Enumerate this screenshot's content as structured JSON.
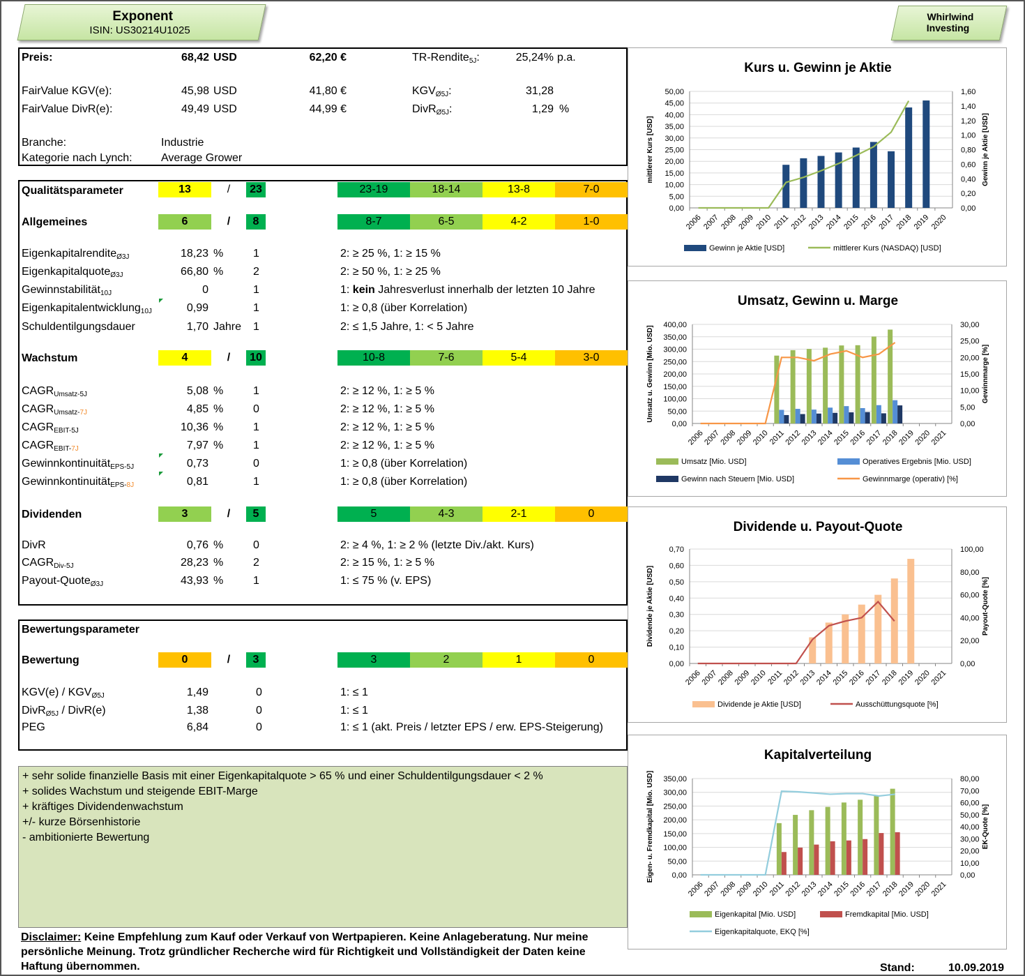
{
  "header": {
    "company": "Exponent",
    "isin": "ISIN: US30214U1025",
    "brand1": "Whirlwind",
    "brand2": "Investing"
  },
  "colors": {
    "dkgreen": "#00b050",
    "ltgreen": "#92d050",
    "yellow": "#ffff00",
    "orange": "#ffc000",
    "navy": "#1f497d",
    "lineGreen": "#9bbb59",
    "barGreen": "#9bbb59",
    "barBlue": "#558ed5",
    "barNavy": "#1f3864",
    "lineOrange": "#f79646",
    "peach": "#fac090",
    "darkred": "#c0504d",
    "lightblue": "#93cddd",
    "commentBg": "#d8e4bc"
  },
  "info": {
    "preis_label": "Preis:",
    "preis_usd": "68,42",
    "usd": "USD",
    "preis_eur": "62,20 €",
    "tr_label": "TR-Rendite",
    "tr_sub": "5J",
    "tr_colon": ":",
    "tr_value": "25,24%",
    "pa": "p.a.",
    "fv_kgv_label": "FairValue KGV(e):",
    "fv_kgv_usd": "45,98",
    "fv_kgv_eur": "41,80 €",
    "kgv_label": "KGV",
    "kgv_sub": "Ø5J",
    "kgv_colon": ":",
    "kgv_value": "31,28",
    "fv_divr_label": "FairValue DivR(e):",
    "fv_divr_usd": "49,49",
    "fv_divr_eur": "44,99 €",
    "divr_label": "DivR",
    "divr_sub": "Ø5J",
    "divr_colon": ":",
    "divr_value": "1,29",
    "pct": "%",
    "branche_label": "Branche:",
    "branche": "Industrie",
    "lynch_label": "Kategorie nach Lynch:",
    "lynch": "Average Grower"
  },
  "quality": {
    "title": "Qualitätsparameter",
    "score": "13",
    "slash": "/",
    "max": "23",
    "scale": [
      "23-19",
      "18-14",
      "13-8",
      "7-0"
    ]
  },
  "allg": {
    "title": "Allgemeines",
    "score": "6",
    "slash": "/",
    "max": "8",
    "scale": [
      "8-7",
      "6-5",
      "4-2",
      "1-0"
    ],
    "rows": [
      {
        "label": "Eigenkapitalrendite",
        "sub": "Ø3J",
        "val": "18,23",
        "unit": "%",
        "pts": "1",
        "crit": "2: ≥ 25 %, 1: ≥ 15 %"
      },
      {
        "label": "Eigenkapitalquote",
        "sub": "Ø3J",
        "val": "66,80",
        "unit": "%",
        "pts": "2",
        "crit": "2: ≥ 50 %, 1: ≥ 25 %"
      },
      {
        "label": "Gewinnstabilität",
        "sub": "10J",
        "val": "0",
        "unit": "",
        "pts": "1",
        "crit_pre": "1: ",
        "crit_bold": "kein",
        "crit_post": " Jahresverlust innerhalb der letzten 10 Jahre"
      },
      {
        "label": "Eigenkapitalentwicklung",
        "sub": "10J",
        "val": "0,99",
        "unit": "",
        "pts": "1",
        "crit": "1: ≥ 0,8 (über Korrelation)"
      },
      {
        "label": "Schuldentilgungsdauer",
        "sub": "",
        "val": "1,70",
        "unit": "Jahre",
        "pts": "1",
        "crit": "2: ≤ 1,5 Jahre, 1: < 5 Jahre"
      }
    ]
  },
  "wachstum": {
    "title": "Wachstum",
    "score": "4",
    "slash": "/",
    "max": "10",
    "scale": [
      "10-8",
      "7-6",
      "5-4",
      "3-0"
    ],
    "rows": [
      {
        "label": "CAGR",
        "sub": "Umsatz-5J",
        "val": "5,08",
        "unit": "%",
        "pts": "1",
        "crit": "2: ≥ 12 %, 1: ≥ 5 %"
      },
      {
        "label": "CAGR",
        "sub": "Umsatz-",
        "sub2": "7J",
        "val": "4,85",
        "unit": "%",
        "pts": "0",
        "crit": "2: ≥ 12 %, 1: ≥ 5 %"
      },
      {
        "label": "CAGR",
        "sub": "EBIT-5J",
        "val": "10,36",
        "unit": "%",
        "pts": "1",
        "crit": "2: ≥ 12 %, 1: ≥ 5 %"
      },
      {
        "label": "CAGR",
        "sub": "EBIT-",
        "sub2": "7J",
        "val": "7,97",
        "unit": "%",
        "pts": "1",
        "crit": "2: ≥ 12 %, 1: ≥ 5 %"
      },
      {
        "label": "Gewinnkontinuität",
        "sub": "EPS-5J",
        "val": "0,73",
        "unit": "",
        "pts": "0",
        "crit": "1: ≥ 0,8 (über Korrelation)"
      },
      {
        "label": "Gewinnkontinuität",
        "sub": "EPS-",
        "sub2": "8J",
        "val": "0,81",
        "unit": "",
        "pts": "1",
        "crit": "1: ≥ 0,8 (über Korrelation)"
      }
    ]
  },
  "dividenden": {
    "title": "Dividenden",
    "score": "3",
    "slash": "/",
    "max": "5",
    "scale": [
      "5",
      "4-3",
      "2-1",
      "0"
    ],
    "rows": [
      {
        "label": "DivR",
        "sub": "",
        "val": "0,76",
        "unit": "%",
        "pts": "0",
        "crit": "2: ≥ 4 %, 1: ≥ 2 % (letzte Div./akt. Kurs)"
      },
      {
        "label": "CAGR",
        "sub": "Div-5J",
        "val": "28,23",
        "unit": "%",
        "pts": "2",
        "crit": "2: ≥ 15 %, 1: ≥ 5 %"
      },
      {
        "label": "Payout-Quote",
        "sub": "Ø3J",
        "val": "43,93",
        "unit": "%",
        "pts": "1",
        "crit": "1: ≤ 75 % (v. EPS)"
      }
    ]
  },
  "bewertung": {
    "section": "Bewertungsparameter",
    "title": "Bewertung",
    "score": "0",
    "slash": "/",
    "max": "3",
    "scale": [
      "3",
      "2",
      "1",
      "0"
    ],
    "rows": [
      {
        "label": "KGV(e) / KGV",
        "sub": "Ø5J",
        "val": "1,49",
        "pts": "0",
        "crit": "1: ≤ 1"
      },
      {
        "label": "DivR",
        "sub": "Ø5J",
        "label2": " / DivR(e)",
        "val": "1,38",
        "pts": "0",
        "crit": "1: ≤ 1"
      },
      {
        "label": "PEG",
        "sub": "",
        "val": "6,84",
        "pts": "0",
        "crit": "1: ≤ 1 (akt. Preis / letzter EPS / erw. EPS-Steigerung)"
      }
    ]
  },
  "comments": [
    "+ sehr solide finanzielle Basis mit einer Eigenkapitalquote > 65 % und einer Schuldentilgungsdauer < 2 %",
    "+ solides Wachstum und steigende EBIT-Marge",
    "+ kräftiges Dividendenwachstum",
    "+/- kurze Börsenhistorie",
    "- ambitionierte Bewertung"
  ],
  "disclaimer": {
    "label": "Disclaimer:",
    "line1": " Keine Empfehlung zum Kauf oder Verkauf von Wertpapieren. Keine Anlageberatung. Nur meine",
    "line2": "persönliche Meinung. Trotz gründlicher Recherche wird für Richtigkeit und Vollständigkeit der Daten keine",
    "line3": "Haftung übernommen."
  },
  "stand": {
    "label": "Stand:",
    "date": "10.09.2019"
  },
  "chart_data": [
    {
      "type": "bar",
      "title": "Kurs u. Gewinn je Aktie",
      "categories": [
        "2006",
        "2007",
        "2008",
        "2009",
        "2010",
        "2011",
        "2012",
        "2013",
        "2014",
        "2015",
        "2016",
        "2017",
        "2018",
        "2019",
        "2020"
      ],
      "ylabel": "mittlerer Kurs [USD]",
      "y2label": "Gewinn je Aktie [USD]",
      "ylim": [
        0,
        50
      ],
      "y2lim": [
        0,
        1.6
      ],
      "yticks": [
        "0,00",
        "5,00",
        "10,00",
        "15,00",
        "20,00",
        "25,00",
        "30,00",
        "35,00",
        "40,00",
        "45,00",
        "50,00"
      ],
      "y2ticks": [
        "0,00",
        "0,20",
        "0,40",
        "0,60",
        "0,80",
        "1,00",
        "1,20",
        "1,40",
        "1,60"
      ],
      "series": [
        {
          "name": "Gewinn je Aktie [USD]",
          "type": "bar",
          "axis": "left",
          "color": "#1f497d",
          "values": [
            null,
            null,
            null,
            null,
            null,
            18.5,
            21.3,
            22.3,
            23.8,
            25.9,
            28.3,
            24.3,
            43.1,
            46.1,
            null
          ]
        },
        {
          "name": "mittlerer Kurs (NASDAQ) [USD]",
          "type": "line",
          "axis": "right",
          "color": "#9bbb59",
          "values": [
            0,
            0,
            0,
            0,
            0,
            0.35,
            0.42,
            0.51,
            0.61,
            0.72,
            0.84,
            1.04,
            1.47,
            null,
            null
          ]
        }
      ]
    },
    {
      "type": "bar",
      "title": "Umsatz, Gewinn u. Marge",
      "categories": [
        "2006",
        "2007",
        "2008",
        "2009",
        "2010",
        "2011",
        "2012",
        "2013",
        "2014",
        "2015",
        "2016",
        "2017",
        "2018",
        "2019",
        "2020",
        "2021"
      ],
      "ylabel": "Umsatz u. Gewinn [Mio. USD]",
      "y2label": "Gewinnmarge [%]",
      "ylim": [
        0,
        400
      ],
      "y2lim": [
        0,
        30
      ],
      "yticks": [
        "0,00",
        "50,00",
        "100,00",
        "150,00",
        "200,00",
        "250,00",
        "300,00",
        "350,00",
        "400,00"
      ],
      "y2ticks": [
        "0,00",
        "5,00",
        "10,00",
        "15,00",
        "20,00",
        "25,00",
        "30,00"
      ],
      "series": [
        {
          "name": "Umsatz [Mio. USD]",
          "type": "bar",
          "axis": "left",
          "color": "#9bbb59",
          "values": [
            null,
            null,
            null,
            null,
            null,
            274,
            296,
            301,
            306,
            315,
            316,
            351,
            379,
            null,
            null,
            null
          ]
        },
        {
          "name": "Operatives Ergebnis [Mio. USD]",
          "type": "bar",
          "axis": "left",
          "color": "#558ed5",
          "values": [
            null,
            null,
            null,
            null,
            null,
            55,
            59,
            56,
            64,
            70,
            62,
            74,
            94,
            null,
            null,
            null
          ]
        },
        {
          "name": "Gewinn nach Steuern [Mio. USD]",
          "type": "bar",
          "axis": "left",
          "color": "#1f3864",
          "values": [
            null,
            null,
            null,
            null,
            null,
            34,
            38,
            40,
            43,
            45,
            46,
            41,
            73,
            null,
            null,
            null
          ]
        },
        {
          "name": "Gewinnmarge (operativ) [%]",
          "type": "line",
          "axis": "right",
          "color": "#f79646",
          "values": [
            0,
            0,
            0,
            0,
            0,
            20,
            20,
            19,
            21,
            22,
            20,
            21,
            24.5,
            null,
            null,
            null
          ]
        }
      ]
    },
    {
      "type": "bar",
      "title": "Dividende u. Payout-Quote",
      "categories": [
        "2006",
        "2007",
        "2008",
        "2009",
        "2010",
        "2011",
        "2012",
        "2013",
        "2014",
        "2015",
        "2016",
        "2017",
        "2018",
        "2019",
        "2020",
        "2021"
      ],
      "ylabel": "Dividende je Aktie [USD]",
      "y2label": "Payout-Quote [%]",
      "ylim": [
        0,
        0.7
      ],
      "y2lim": [
        0,
        100
      ],
      "yticks": [
        "0,00",
        "0,10",
        "0,20",
        "0,30",
        "0,40",
        "0,50",
        "0,60",
        "0,70"
      ],
      "y2ticks": [
        "0,00",
        "20,00",
        "40,00",
        "60,00",
        "80,00",
        "100,00"
      ],
      "series": [
        {
          "name": "Dividende je Aktie [USD]",
          "type": "bar",
          "axis": "left",
          "color": "#fac090",
          "values": [
            null,
            null,
            null,
            null,
            null,
            null,
            null,
            0.16,
            0.25,
            0.3,
            0.36,
            0.42,
            0.52,
            0.64,
            null,
            null
          ]
        },
        {
          "name": "Ausschüttungsquote [%]",
          "type": "line",
          "axis": "right",
          "color": "#c0504d",
          "values": [
            0,
            0,
            0,
            0,
            0,
            0,
            0,
            21,
            33,
            37,
            40,
            54,
            37,
            null,
            null,
            null
          ]
        }
      ]
    },
    {
      "type": "bar",
      "title": "Kapitalverteilung",
      "categories": [
        "2006",
        "2007",
        "2008",
        "2009",
        "2010",
        "2011",
        "2012",
        "2013",
        "2014",
        "2015",
        "2016",
        "2017",
        "2018",
        "2019",
        "2020",
        "2021"
      ],
      "ylabel": "Eigen- u. Fremdkapital [Mio. USD]",
      "y2label": "EK-Quote [%]",
      "ylim": [
        0,
        350
      ],
      "y2lim": [
        0,
        80
      ],
      "yticks": [
        "0,00",
        "50,00",
        "100,00",
        "150,00",
        "200,00",
        "250,00",
        "300,00",
        "350,00"
      ],
      "y2ticks": [
        "0,00",
        "10,00",
        "20,00",
        "30,00",
        "40,00",
        "50,00",
        "60,00",
        "70,00",
        "80,00"
      ],
      "series": [
        {
          "name": "Eigenkapital [Mio. USD]",
          "type": "bar",
          "axis": "left",
          "color": "#9bbb59",
          "values": [
            null,
            null,
            null,
            null,
            null,
            188,
            218,
            235,
            247,
            263,
            273,
            287,
            313,
            null,
            null,
            null
          ]
        },
        {
          "name": "Fremdkapital [Mio. USD]",
          "type": "bar",
          "axis": "left",
          "color": "#c0504d",
          "values": [
            null,
            null,
            null,
            null,
            null,
            83,
            99,
            110,
            122,
            125,
            130,
            152,
            155,
            null,
            null,
            null
          ]
        },
        {
          "name": "Eigenkapitalquote, EKQ [%]",
          "type": "line",
          "axis": "right",
          "color": "#93cddd",
          "values": [
            0,
            0,
            0,
            0,
            0,
            69.5,
            69,
            68,
            67,
            67.5,
            67.5,
            65.5,
            67,
            null,
            null,
            null
          ]
        }
      ]
    }
  ]
}
